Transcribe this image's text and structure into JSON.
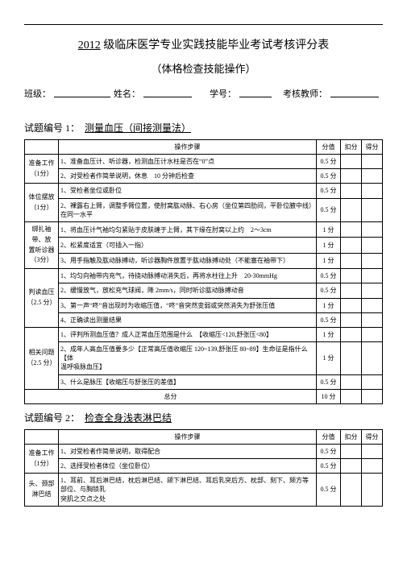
{
  "header": {
    "title_prefix": "2012",
    "title_rest": " 级临床医学专业实践技能毕业考试考核评分表",
    "subtitle": "（体格检查技能操作）",
    "info_labels": {
      "class": "班级：",
      "name": "姓名：",
      "id": "学号：",
      "examiner": "考核教师："
    }
  },
  "cols": {
    "steps": "操作步骤",
    "score": "分值",
    "deduct": "扣分",
    "got": "得分"
  },
  "q1": {
    "heading_prefix": "试题编号 1：",
    "heading_title": "测量血压（间接测量法）",
    "rows": [
      {
        "cat": "准备工作\n（1分）",
        "span": 2,
        "desc": "1、准备血压计、听诊器，检测血压计水柱是否在“0”点",
        "score": "0.5 分"
      },
      {
        "desc": "2、对受检者作简单说明，休息　10 分钟后检查",
        "score": "0.5 分"
      },
      {
        "cat": "体位摆放\n（1分）",
        "span": 2,
        "desc": "1、受检者坐位或卧位",
        "score": "0.5 分"
      },
      {
        "desc": "2、裸露右上臂，调整手臂位置，使肘窝肱动脉、右心房（坐位第四肋间，平卧位腋中线）在同一水平",
        "score": "0.5 分"
      },
      {
        "cat": "绑扎袖带、放\n置听诊器\n（3分）",
        "span": 3,
        "desc": "1、将血压计气袖均匀紧贴于皮肤缠于上臂，其下缘在肘窝以上约　2～3cm",
        "score": "1 分"
      },
      {
        "desc": "2、松紧度适宜（可插入一指）",
        "score": "1 分"
      },
      {
        "desc": "3、用手指触及肱动脉搏动，听诊器胸件放置于肱动脉搏动处（不能塞在袖带下）",
        "score": "1 分"
      },
      {
        "cat": "判读血压\n（2.5 分）",
        "span": 4,
        "desc": "1、均匀向袖带内充气，待挠动脉搏动消失后，再将水柱往上升　20-30mmHg",
        "score": "0.5 分"
      },
      {
        "desc": "2、缓慢放气，放松充气球阀，降 2mm/s，同时听诊肱动脉搏动音",
        "score": "0.5 分"
      },
      {
        "desc": "3、第一声“咚”音出现时为收缩压值，“咚”音突然变弱或突然消失为舒张压值",
        "score": "1 分"
      },
      {
        "desc": "4、正确读出测量结果",
        "score": "0.5 分"
      },
      {
        "cat": "相关问题\n（2.5 分）",
        "span": 3,
        "desc": "1、评判所测血压值？成人正常血压范围是什么　【收缩压<120,舒张压<80】",
        "score": "1 分"
      },
      {
        "desc": "2、成年人高血压值要多少【正常高压值收缩压 120~139,舒张压 80~89】生命征是指什么【体\n温呼吸脉血压】",
        "score": "1 分"
      },
      {
        "desc": "3、什么是脉压【收缩压与舒张压的差值】",
        "score": "0.5 分"
      }
    ],
    "total_label": "总分",
    "total_score": "10 分"
  },
  "q2": {
    "heading_prefix": "试题编号 2：",
    "heading_title": "检查全身浅表淋巴结",
    "rows": [
      {
        "cat": "准备工作\n（1分）",
        "span": 2,
        "desc": "1、对受检者作简单说明，取得配合",
        "score": "0.5 分"
      },
      {
        "desc": "2、选择受检者体位（坐位卧位）",
        "score": "0.5 分"
      },
      {
        "cat": "头、颈部\n淋巴结",
        "span": 1,
        "desc": "1、耳前、耳后淋巴结，枕后淋巴结、颌下淋巴结、耳后乳突后方、枕部、刻下、颏方等部位、与胸锁乳\n突肌之交点之处",
        "score": "0.5 分"
      }
    ]
  }
}
